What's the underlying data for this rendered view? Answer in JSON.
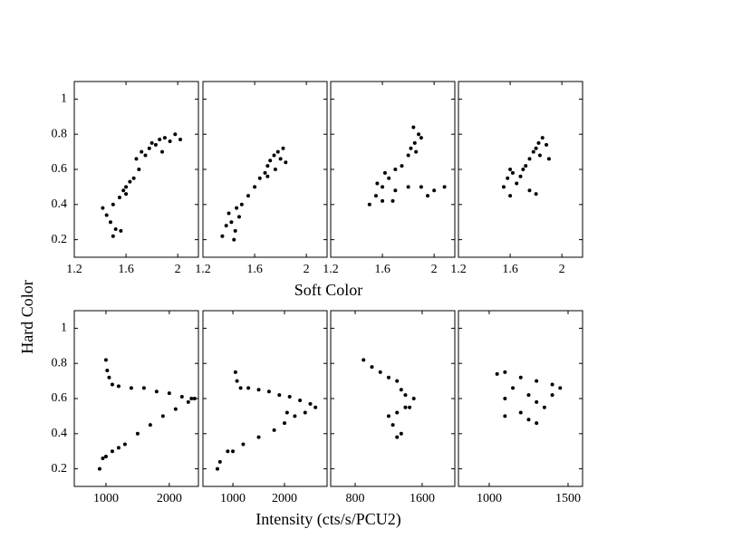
{
  "chart_data": [
    {
      "type": "scatter",
      "color": "#000000",
      "xlim": [
        1.2,
        2.16
      ],
      "ylim": [
        0.1,
        1.1
      ],
      "xticks": [
        1.2,
        1.6,
        2
      ],
      "yticks": [
        0.2,
        0.4,
        0.6,
        0.8,
        1
      ],
      "ylabel": "Hard Color",
      "x": [
        1.42,
        1.45,
        1.48,
        1.5,
        1.52,
        1.5,
        1.55,
        1.58,
        1.6,
        1.63,
        1.66,
        1.7,
        1.68,
        1.72,
        1.75,
        1.78,
        1.8,
        1.83,
        1.86,
        1.9,
        1.94,
        1.98,
        2.02,
        1.88,
        1.56,
        1.6
      ],
      "y": [
        0.38,
        0.34,
        0.3,
        0.22,
        0.26,
        0.4,
        0.44,
        0.48,
        0.5,
        0.53,
        0.55,
        0.6,
        0.66,
        0.7,
        0.68,
        0.72,
        0.75,
        0.74,
        0.77,
        0.78,
        0.76,
        0.8,
        0.77,
        0.7,
        0.25,
        0.46
      ]
    },
    {
      "type": "scatter",
      "color": "#000000",
      "xlim": [
        1.2,
        2.16
      ],
      "ylim": [
        0.1,
        1.1
      ],
      "xticks": [
        1.2,
        1.6,
        2
      ],
      "yticks": [
        0.2,
        0.4,
        0.6,
        0.8,
        1
      ],
      "xlabel": "Soft Color",
      "x": [
        1.35,
        1.38,
        1.42,
        1.45,
        1.48,
        1.4,
        1.44,
        1.5,
        1.55,
        1.6,
        1.64,
        1.68,
        1.7,
        1.72,
        1.75,
        1.78,
        1.8,
        1.82,
        1.76,
        1.84,
        1.7,
        1.46
      ],
      "y": [
        0.22,
        0.28,
        0.3,
        0.25,
        0.33,
        0.35,
        0.2,
        0.4,
        0.45,
        0.5,
        0.55,
        0.58,
        0.62,
        0.65,
        0.68,
        0.7,
        0.66,
        0.72,
        0.6,
        0.64,
        0.56,
        0.38
      ]
    },
    {
      "type": "scatter",
      "color": "#000000",
      "xlim": [
        1.2,
        2.16
      ],
      "ylim": [
        0.1,
        1.1
      ],
      "xticks": [
        1.2,
        1.6,
        2
      ],
      "yticks": [
        0.2,
        0.4,
        0.6,
        0.8,
        1
      ],
      "x": [
        1.5,
        1.55,
        1.6,
        1.65,
        1.7,
        1.6,
        1.56,
        1.75,
        1.8,
        1.85,
        1.88,
        1.82,
        1.86,
        1.9,
        1.84,
        1.7,
        1.8,
        1.9,
        2.0,
        2.08,
        1.95,
        1.62,
        1.68
      ],
      "y": [
        0.4,
        0.45,
        0.5,
        0.55,
        0.6,
        0.42,
        0.52,
        0.62,
        0.68,
        0.75,
        0.8,
        0.72,
        0.7,
        0.78,
        0.84,
        0.48,
        0.5,
        0.5,
        0.48,
        0.5,
        0.45,
        0.58,
        0.42
      ]
    },
    {
      "type": "scatter",
      "color": "#000000",
      "xlim": [
        1.2,
        2.16
      ],
      "ylim": [
        0.1,
        1.1
      ],
      "xticks": [
        1.2,
        1.6,
        2
      ],
      "yticks": [
        0.2,
        0.4,
        0.6,
        0.8,
        1
      ],
      "x": [
        1.55,
        1.58,
        1.6,
        1.62,
        1.65,
        1.7,
        1.72,
        1.75,
        1.78,
        1.8,
        1.82,
        1.85,
        1.83,
        1.88,
        1.9,
        1.68,
        1.75,
        1.8,
        1.6
      ],
      "y": [
        0.5,
        0.55,
        0.45,
        0.58,
        0.52,
        0.6,
        0.62,
        0.66,
        0.7,
        0.72,
        0.75,
        0.78,
        0.68,
        0.74,
        0.66,
        0.56,
        0.48,
        0.46,
        0.6
      ]
    },
    {
      "type": "scatter",
      "color": "#000000",
      "xlim": [
        500,
        2460
      ],
      "ylim": [
        0.1,
        1.1
      ],
      "xticks": [
        1000,
        2000
      ],
      "yticks": [
        0.2,
        0.4,
        0.6,
        0.8,
        1
      ],
      "x": [
        1000,
        1020,
        1050,
        1100,
        1200,
        1400,
        1600,
        1800,
        2000,
        2200,
        2400,
        2300,
        2100,
        1900,
        1700,
        1500,
        1300,
        1100,
        950,
        900,
        1000,
        1200,
        2350
      ],
      "y": [
        0.82,
        0.76,
        0.72,
        0.68,
        0.67,
        0.66,
        0.66,
        0.64,
        0.63,
        0.61,
        0.6,
        0.58,
        0.54,
        0.5,
        0.45,
        0.4,
        0.34,
        0.3,
        0.26,
        0.2,
        0.27,
        0.32,
        0.6
      ]
    },
    {
      "type": "scatter",
      "color": "#000000",
      "xlim": [
        420,
        2825
      ],
      "ylim": [
        0.1,
        1.1
      ],
      "xticks": [
        1000,
        2000
      ],
      "yticks": [
        0.2,
        0.4,
        0.6,
        0.8,
        1
      ],
      "xlabel": "Intensity (cts/s/PCU2)",
      "x": [
        1050,
        1080,
        1150,
        1300,
        1500,
        1700,
        1900,
        2100,
        2300,
        2500,
        2600,
        2400,
        2200,
        2000,
        1800,
        1500,
        1200,
        900,
        750,
        700,
        1000,
        2050
      ],
      "y": [
        0.75,
        0.7,
        0.66,
        0.66,
        0.65,
        0.64,
        0.62,
        0.61,
        0.59,
        0.57,
        0.55,
        0.52,
        0.5,
        0.46,
        0.42,
        0.38,
        0.34,
        0.3,
        0.24,
        0.2,
        0.3,
        0.52
      ]
    },
    {
      "type": "scatter",
      "color": "#000000",
      "xlim": [
        508,
        1990
      ],
      "ylim": [
        0.1,
        1.1
      ],
      "xticks": [
        800,
        1600
      ],
      "yticks": [
        0.2,
        0.4,
        0.6,
        0.8,
        1
      ],
      "x": [
        900,
        1100,
        1300,
        1400,
        1500,
        1400,
        1300,
        1200,
        1250,
        1350,
        1300,
        1450,
        1350,
        1000,
        1200
      ],
      "y": [
        0.82,
        0.75,
        0.7,
        0.62,
        0.6,
        0.55,
        0.52,
        0.5,
        0.45,
        0.4,
        0.38,
        0.55,
        0.65,
        0.78,
        0.72
      ]
    },
    {
      "type": "scatter",
      "color": "#000000",
      "xlim": [
        805,
        1592
      ],
      "ylim": [
        0.1,
        1.1
      ],
      "xticks": [
        1000,
        1500
      ],
      "yticks": [
        0.2,
        0.4,
        0.6,
        0.8,
        1
      ],
      "x": [
        1100,
        1200,
        1300,
        1400,
        1450,
        1400,
        1300,
        1200,
        1250,
        1100,
        1100,
        1150,
        1250,
        1350,
        1050,
        1300
      ],
      "y": [
        0.75,
        0.72,
        0.7,
        0.68,
        0.66,
        0.62,
        0.58,
        0.52,
        0.48,
        0.5,
        0.6,
        0.66,
        0.62,
        0.55,
        0.74,
        0.46
      ]
    }
  ]
}
